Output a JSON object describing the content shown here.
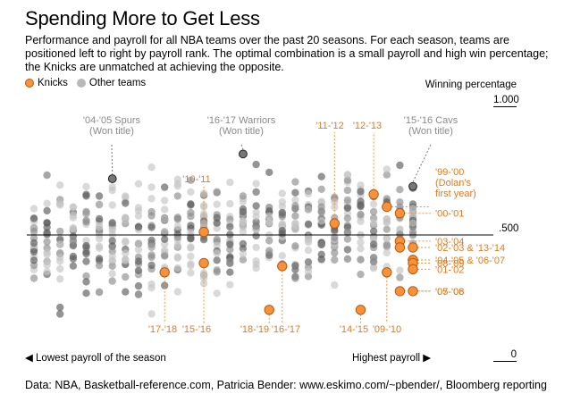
{
  "title": "Spending More to Get Less",
  "subtitle": "Performance and payroll for all NBA teams over the past 20 seasons. For each season, teams are positioned left to right by payroll rank. The optimal combination is a small payroll and high win percentage; the Knicks are unmatched at achieving the opposite.",
  "legend": {
    "knicks": "Knicks",
    "others": "Other teams"
  },
  "source": "Data: NBA, Basketball-reference.com, Patricia Bender: www.eskimo.com/~pbender/, Bloomberg reporting",
  "colors": {
    "knicks": "#f7923a",
    "knicks_stroke": "#b85a10",
    "others": "#a0a0a0",
    "highlight": "#666666"
  },
  "chart_data": {
    "type": "scatter",
    "ylabel": "Winning percentage",
    "xlabel_low": "◀ Lowest payroll of the season",
    "xlabel_high": "Highest payroll ▶",
    "xlim": [
      1,
      30
    ],
    "ylim": [
      0,
      1
    ],
    "yticks": [
      "1.000",
      ".500",
      "0"
    ],
    "knicks": [
      {
        "season": "'17-'18",
        "x": 11,
        "y": 0.354
      },
      {
        "season": "'10-'11",
        "x": 14,
        "y": 0.512
      },
      {
        "season": "'15-'16",
        "x": 14,
        "y": 0.39
      },
      {
        "season": "'18-'19",
        "x": 19,
        "y": 0.207
      },
      {
        "season": "'16-'17",
        "x": 20,
        "y": 0.378
      },
      {
        "season": "'11-'12",
        "x": 24,
        "y": 0.545
      },
      {
        "season": "'12-'13",
        "x": 27,
        "y": 0.659
      },
      {
        "season": "'14-'15",
        "x": 26,
        "y": 0.207
      },
      {
        "season": "'09-'10",
        "x": 28,
        "y": 0.354
      },
      {
        "season": "'99-'00",
        "x": 28,
        "y": 0.61
      },
      {
        "season": "'00-'01",
        "x": 29,
        "y": 0.585
      },
      {
        "season": "'03-'04",
        "x": 29,
        "y": 0.476
      },
      {
        "season": "'02-'03",
        "x": 29,
        "y": 0.451
      },
      {
        "season": "'13-'14",
        "x": 30,
        "y": 0.451
      },
      {
        "season": "'04-'05",
        "x": 30,
        "y": 0.402
      },
      {
        "season": "'06-'07",
        "x": 30,
        "y": 0.402
      },
      {
        "season": "'08-'09",
        "x": 30,
        "y": 0.39
      },
      {
        "season": "'01-'02",
        "x": 30,
        "y": 0.366
      },
      {
        "season": "'05-'06",
        "x": 29,
        "y": 0.28
      },
      {
        "season": "'07-'08",
        "x": 30,
        "y": 0.28
      }
    ],
    "highlighted_others": [
      {
        "label": "'04-'05 Spurs\n(Won title)",
        "x": 7,
        "y": 0.72
      },
      {
        "label": "'16-'17 Warriors\n(Won title)",
        "x": 17,
        "y": 0.817
      },
      {
        "label": "'15-'16 Cavs\n(Won title)",
        "x": 30,
        "y": 0.69
      }
    ],
    "knick_labels": [
      {
        "text": "'17-'18",
        "x": 11,
        "y": 0.354
      },
      {
        "text": "'15-'16",
        "x": 14,
        "y": 0.39
      },
      {
        "text": "'10-'11",
        "x": 14,
        "y": 0.512
      },
      {
        "text": "'18-'19",
        "x": 19,
        "y": 0.207
      },
      {
        "text": "'16-'17",
        "x": 20,
        "y": 0.378
      },
      {
        "text": "'11-'12",
        "x": 24,
        "y": 0.545
      },
      {
        "text": "'12-'13",
        "x": 27,
        "y": 0.659
      },
      {
        "text": "'14-'15",
        "x": 26,
        "y": 0.207
      },
      {
        "text": "'09-'10",
        "x": 28,
        "y": 0.354
      },
      {
        "text": "'99-'00\n(Dolan's\nfirst year)",
        "x": 28,
        "y": 0.61
      },
      {
        "text": "'00-'01",
        "x": 29,
        "y": 0.585
      },
      {
        "text": "'03-'04",
        "x": 29,
        "y": 0.476
      },
      {
        "text": "'02-'03 & '13-'14",
        "x": 30,
        "y": 0.451
      },
      {
        "text": "'04-'05 & '06-'07",
        "x": 30,
        "y": 0.402
      },
      {
        "text": "'08-'09",
        "x": 30,
        "y": 0.39
      },
      {
        "text": "'01-'02",
        "x": 30,
        "y": 0.366
      },
      {
        "text": "'05-'06",
        "x": 29,
        "y": 0.28
      },
      {
        "text": "'07-'08",
        "x": 30,
        "y": 0.28
      }
    ]
  }
}
